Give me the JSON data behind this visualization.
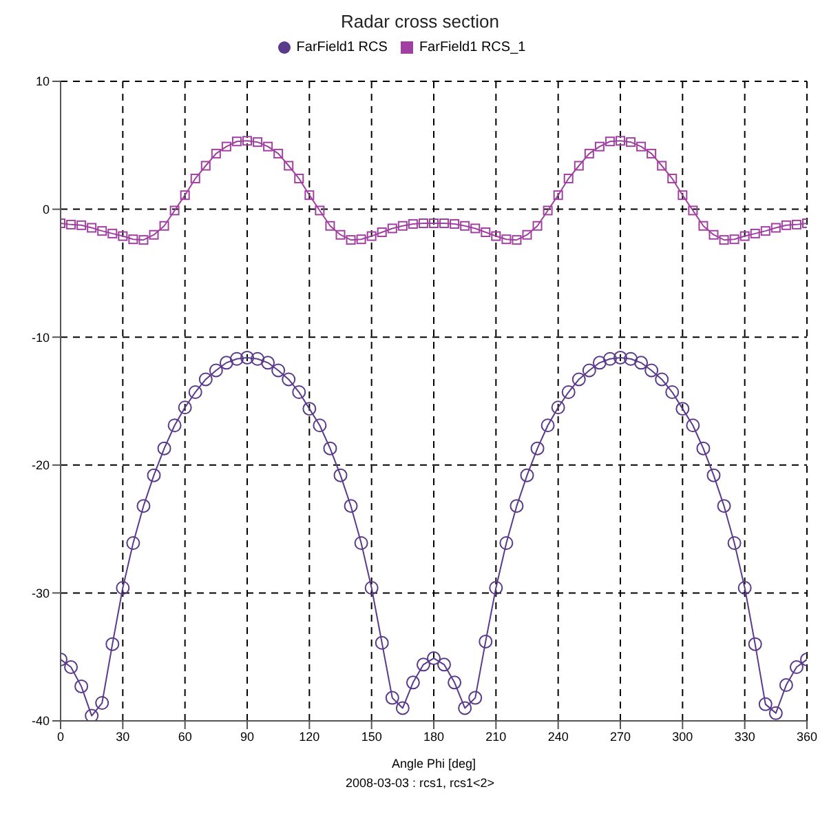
{
  "chart_data": {
    "type": "line",
    "title": "Radar cross section",
    "xlabel": "Angle Phi [deg]",
    "annotations": [
      "2008-03-03 : rcs1, rcs1<2>"
    ],
    "x": [
      0,
      5,
      10,
      15,
      20,
      25,
      30,
      35,
      40,
      45,
      50,
      55,
      60,
      65,
      70,
      75,
      80,
      85,
      90,
      95,
      100,
      105,
      110,
      115,
      120,
      125,
      130,
      135,
      140,
      145,
      150,
      155,
      160,
      165,
      170,
      175,
      180,
      185,
      190,
      195,
      200,
      205,
      210,
      215,
      220,
      225,
      230,
      235,
      240,
      245,
      250,
      255,
      260,
      265,
      270,
      275,
      280,
      285,
      290,
      295,
      300,
      305,
      310,
      315,
      320,
      325,
      330,
      335,
      340,
      345,
      350,
      355,
      360
    ],
    "series": [
      {
        "name": "FarField1 RCS",
        "color": "#5a3a8a",
        "marker": "circle",
        "values": [
          -35.2,
          -35.8,
          -37.3,
          -39.6,
          -38.6,
          -34.0,
          -29.6,
          -26.1,
          -23.2,
          -20.8,
          -18.7,
          -16.9,
          -15.5,
          -14.3,
          -13.3,
          -12.6,
          -12.0,
          -11.7,
          -11.6,
          -11.7,
          -12.0,
          -12.6,
          -13.3,
          -14.3,
          -15.6,
          -16.9,
          -18.7,
          -20.8,
          -23.2,
          -26.1,
          -29.6,
          -33.9,
          -38.2,
          -39.0,
          -37.0,
          -35.6,
          -35.1,
          -35.6,
          -37.0,
          -39.0,
          -38.2,
          -33.8,
          -29.6,
          -26.1,
          -23.2,
          -20.8,
          -18.7,
          -16.9,
          -15.5,
          -14.3,
          -13.3,
          -12.6,
          -12.0,
          -11.7,
          -11.6,
          -11.7,
          -12.0,
          -12.6,
          -13.3,
          -14.3,
          -15.6,
          -16.9,
          -18.7,
          -20.8,
          -23.2,
          -26.1,
          -29.6,
          -34.0,
          -38.7,
          -39.4,
          -37.2,
          -35.8,
          -35.2
        ]
      },
      {
        "name": "FarField1 RCS_1",
        "color": "#a040a0",
        "marker": "square",
        "values": [
          -1.1,
          -1.2,
          -1.25,
          -1.45,
          -1.7,
          -1.9,
          -2.1,
          -2.35,
          -2.4,
          -2.0,
          -1.3,
          -0.1,
          1.1,
          2.4,
          3.4,
          4.35,
          4.9,
          5.3,
          5.35,
          5.25,
          4.9,
          4.35,
          3.4,
          2.4,
          1.1,
          -0.1,
          -1.3,
          -2.0,
          -2.4,
          -2.35,
          -2.1,
          -1.8,
          -1.5,
          -1.3,
          -1.15,
          -1.1,
          -1.1,
          -1.1,
          -1.15,
          -1.3,
          -1.5,
          -1.8,
          -2.1,
          -2.35,
          -2.4,
          -2.0,
          -1.3,
          -0.1,
          1.1,
          2.4,
          3.4,
          4.35,
          4.9,
          5.3,
          5.35,
          5.25,
          4.9,
          4.35,
          3.4,
          2.4,
          1.1,
          -0.1,
          -1.3,
          -2.0,
          -2.4,
          -2.35,
          -2.1,
          -1.9,
          -1.7,
          -1.45,
          -1.25,
          -1.2,
          -1.1
        ]
      }
    ],
    "xlim": [
      0,
      360
    ],
    "xticks": [
      0,
      30,
      60,
      90,
      120,
      150,
      180,
      210,
      240,
      270,
      300,
      330,
      360
    ],
    "ylim": [
      -40,
      10
    ],
    "yticks": [
      -40,
      -30,
      -20,
      -10,
      0,
      10
    ],
    "grid": true,
    "legend": "top"
  }
}
